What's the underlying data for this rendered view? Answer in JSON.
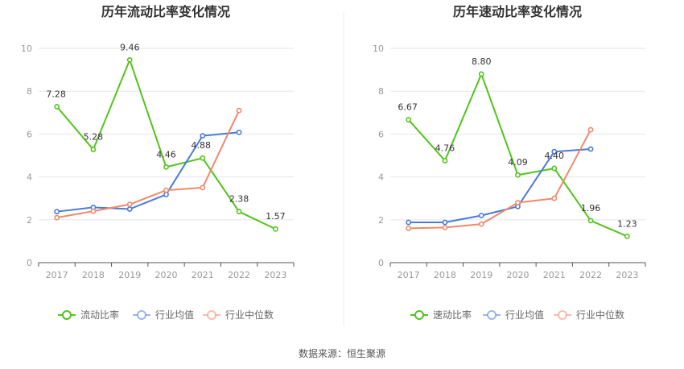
{
  "footer": {
    "source": "数据来源：恒生聚源"
  },
  "colors": {
    "main": "#52c41a",
    "avg": "#4a7bd8",
    "median": "#f0896a"
  },
  "chart_data": [
    {
      "type": "line",
      "title": "历年流动比率变化情况",
      "categories": [
        "2017",
        "2018",
        "2019",
        "2020",
        "2021",
        "2022",
        "2023"
      ],
      "ylim": [
        0,
        10
      ],
      "yticks": [
        "0",
        "2",
        "4",
        "6",
        "8",
        "10"
      ],
      "grid": true,
      "legend_position": "bottom",
      "series": [
        {
          "name": "流动比率",
          "values": [
            7.28,
            5.28,
            9.46,
            4.46,
            4.88,
            2.38,
            1.57
          ],
          "labels": [
            "7.28",
            "5.28",
            "9.46",
            "4.46",
            "4.88",
            "2.38",
            "1.57"
          ]
        },
        {
          "name": "行业均值",
          "values": [
            2.38,
            2.58,
            2.5,
            3.18,
            5.92,
            6.08,
            null
          ]
        },
        {
          "name": "行业中位数",
          "values": [
            2.1,
            2.4,
            2.72,
            3.38,
            3.5,
            7.1,
            null
          ]
        }
      ]
    },
    {
      "type": "line",
      "title": "历年速动比率变化情况",
      "categories": [
        "2017",
        "2018",
        "2019",
        "2020",
        "2021",
        "2022",
        "2023"
      ],
      "ylim": [
        0,
        10
      ],
      "yticks": [
        "0",
        "2",
        "4",
        "6",
        "8",
        "10"
      ],
      "grid": true,
      "legend_position": "bottom",
      "series": [
        {
          "name": "速动比率",
          "values": [
            6.67,
            4.76,
            8.8,
            4.09,
            4.4,
            1.96,
            1.23
          ],
          "labels": [
            "6.67",
            "4.76",
            "8.80",
            "4.09",
            "4.40",
            "1.96",
            "1.23"
          ]
        },
        {
          "name": "行业均值",
          "values": [
            1.88,
            1.88,
            2.2,
            2.62,
            5.18,
            5.3,
            null
          ]
        },
        {
          "name": "行业中位数",
          "values": [
            1.6,
            1.64,
            1.8,
            2.8,
            3.0,
            6.2,
            null
          ]
        }
      ]
    }
  ]
}
